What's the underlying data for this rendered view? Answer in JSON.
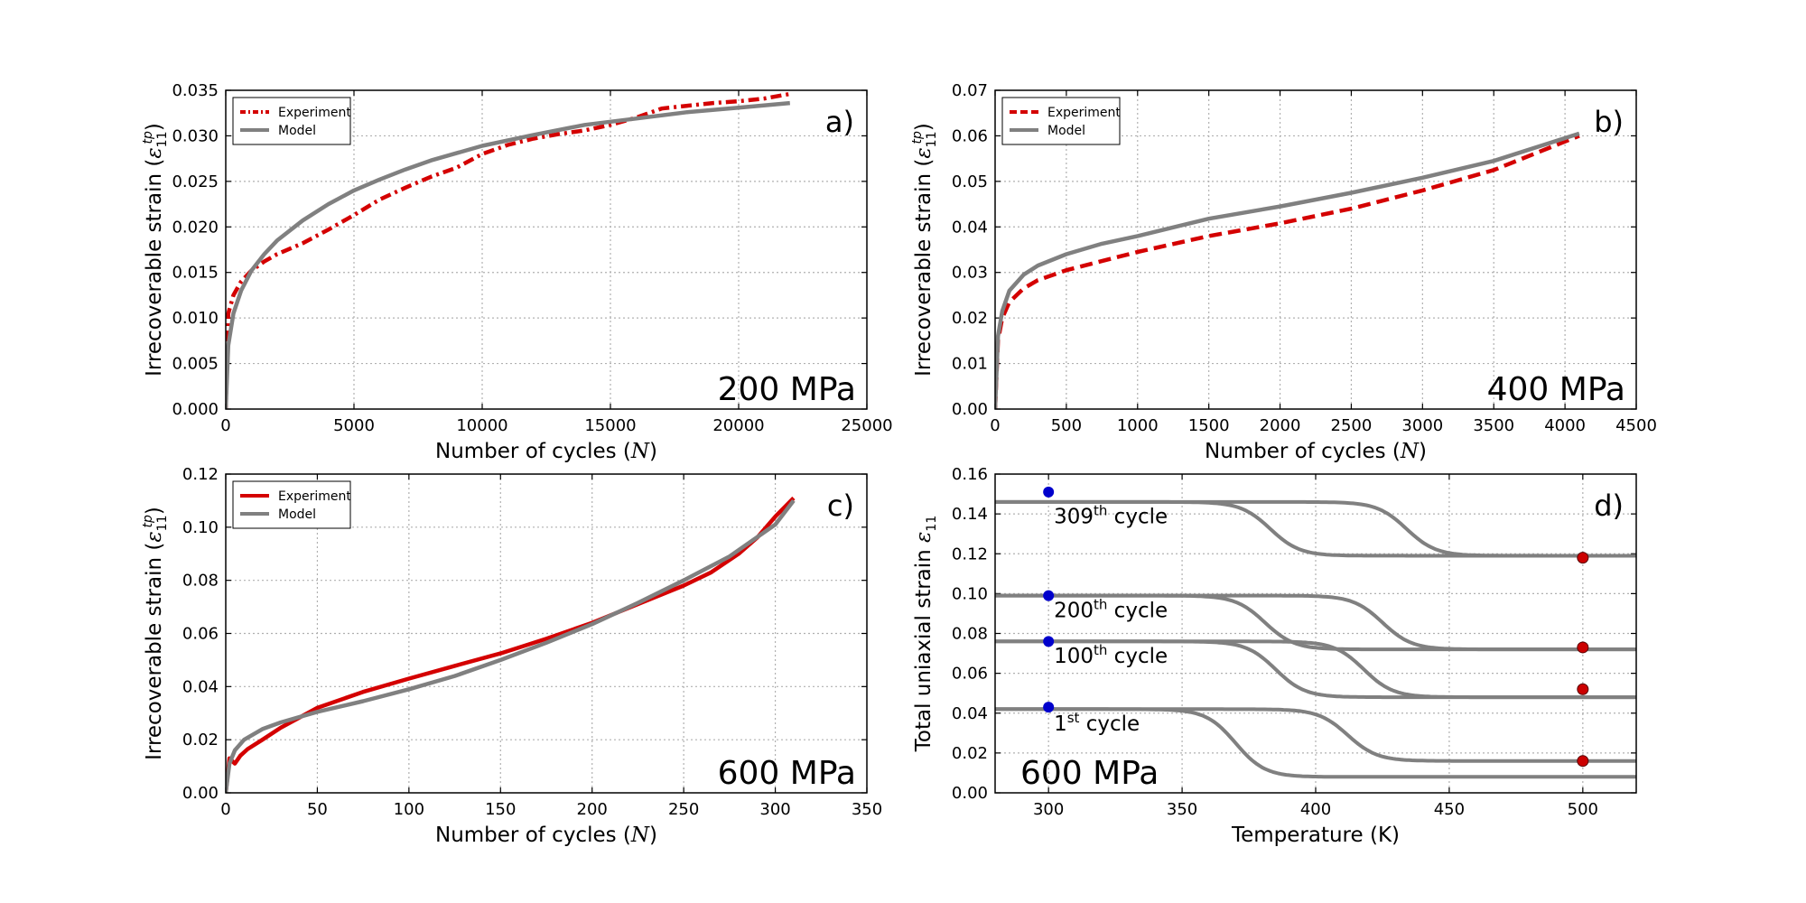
{
  "colors": {
    "experiment": "#d40000",
    "model": "#808080",
    "blue_marker": "#0000cc",
    "red_marker": "#cc0000",
    "grid": "#b0b0b0"
  },
  "chart_data": [
    {
      "id": "a",
      "type": "line",
      "panel_label": "a)",
      "annotation": "200 MPa",
      "xlabel": "Number of cycles (N)",
      "ylabel": "Irrecoverable strain (ε11tp)",
      "xlim": [
        0,
        25000
      ],
      "ylim": [
        0,
        0.035
      ],
      "xticks": [
        "0",
        "5000",
        "10000",
        "15000",
        "20000",
        "25000"
      ],
      "yticks": [
        "0.000",
        "0.005",
        "0.010",
        "0.015",
        "0.020",
        "0.025",
        "0.030",
        "0.035"
      ],
      "grid": true,
      "legend": "top-left",
      "series": [
        {
          "name": "Experiment",
          "style": "dashdot",
          "color": "#d40000",
          "x": [
            0,
            100,
            300,
            600,
            1000,
            1500,
            2000,
            3000,
            4000,
            5000,
            6000,
            7000,
            8000,
            9000,
            10000,
            11000,
            12000,
            13000,
            14000,
            15000,
            16000,
            17000,
            18000,
            19000,
            20000,
            21000,
            22000
          ],
          "y": [
            0.0,
            0.0105,
            0.0125,
            0.014,
            0.0152,
            0.0162,
            0.017,
            0.0182,
            0.0197,
            0.0213,
            0.023,
            0.0243,
            0.0255,
            0.0265,
            0.028,
            0.029,
            0.0297,
            0.0302,
            0.0306,
            0.0312,
            0.032,
            0.033,
            0.0333,
            0.0336,
            0.0338,
            0.0341,
            0.0346
          ]
        },
        {
          "name": "Model",
          "style": "solid",
          "color": "#808080",
          "x": [
            0,
            100,
            300,
            600,
            1000,
            1500,
            2000,
            3000,
            4000,
            5000,
            6000,
            7000,
            8000,
            9000,
            10000,
            12000,
            14000,
            16000,
            18000,
            20000,
            22000
          ],
          "y": [
            0.0,
            0.007,
            0.0105,
            0.013,
            0.0152,
            0.017,
            0.0185,
            0.0207,
            0.0225,
            0.024,
            0.0252,
            0.0263,
            0.0273,
            0.0281,
            0.0289,
            0.0301,
            0.0312,
            0.0319,
            0.0326,
            0.0331,
            0.0336
          ]
        }
      ]
    },
    {
      "id": "b",
      "type": "line",
      "panel_label": "b)",
      "annotation": "400 MPa",
      "xlabel": "Number of cycles (N)",
      "ylabel": "Irrecoverable strain (ε11tp)",
      "xlim": [
        0,
        4500
      ],
      "ylim": [
        0,
        0.07
      ],
      "xticks": [
        "0",
        "500",
        "1000",
        "1500",
        "2000",
        "2500",
        "3000",
        "3500",
        "4000",
        "4500"
      ],
      "yticks": [
        "0.00",
        "0.01",
        "0.02",
        "0.03",
        "0.04",
        "0.05",
        "0.06",
        "0.07"
      ],
      "grid": true,
      "legend": "top-left",
      "series": [
        {
          "name": "Experiment",
          "style": "dashed",
          "color": "#d40000",
          "x": [
            0,
            20,
            50,
            100,
            200,
            300,
            500,
            750,
            1000,
            1500,
            2000,
            2500,
            3000,
            3500,
            4100
          ],
          "y": [
            0.0,
            0.015,
            0.02,
            0.0235,
            0.0265,
            0.0283,
            0.0305,
            0.0325,
            0.0345,
            0.038,
            0.0408,
            0.044,
            0.048,
            0.0525,
            0.06
          ]
        },
        {
          "name": "Model",
          "style": "solid",
          "color": "#808080",
          "x": [
            0,
            20,
            50,
            100,
            200,
            300,
            500,
            750,
            1000,
            1500,
            2000,
            2500,
            3000,
            3500,
            4100
          ],
          "y": [
            0.0,
            0.016,
            0.0215,
            0.026,
            0.0295,
            0.0315,
            0.034,
            0.0363,
            0.038,
            0.0418,
            0.0445,
            0.0475,
            0.0508,
            0.0545,
            0.0605
          ]
        }
      ]
    },
    {
      "id": "c",
      "type": "line",
      "panel_label": "c)",
      "annotation": "600 MPa",
      "xlabel": "Number of cycles (N)",
      "ylabel": "Irrecoverable strain (ε11tp)",
      "xlim": [
        0,
        350
      ],
      "ylim": [
        0,
        0.12
      ],
      "xticks": [
        "0",
        "50",
        "100",
        "150",
        "200",
        "250",
        "300",
        "350"
      ],
      "yticks": [
        "0.00",
        "0.02",
        "0.04",
        "0.06",
        "0.08",
        "0.10",
        "0.12"
      ],
      "grid": true,
      "legend": "top-left",
      "series": [
        {
          "name": "Experiment",
          "style": "solid",
          "color": "#d40000",
          "x": [
            0,
            2,
            5,
            8,
            12,
            20,
            30,
            50,
            75,
            100,
            125,
            150,
            175,
            200,
            225,
            250,
            265,
            280,
            290,
            300,
            310
          ],
          "y": [
            0.0,
            0.013,
            0.011,
            0.014,
            0.0165,
            0.02,
            0.0245,
            0.032,
            0.038,
            0.043,
            0.0478,
            0.0525,
            0.058,
            0.064,
            0.071,
            0.078,
            0.083,
            0.09,
            0.096,
            0.104,
            0.111
          ]
        },
        {
          "name": "Model",
          "style": "solid",
          "color": "#808080",
          "x": [
            0,
            2,
            5,
            10,
            20,
            30,
            50,
            75,
            100,
            125,
            150,
            175,
            200,
            225,
            250,
            275,
            300,
            310
          ],
          "y": [
            0.0,
            0.011,
            0.016,
            0.02,
            0.024,
            0.0265,
            0.0305,
            0.0345,
            0.039,
            0.044,
            0.05,
            0.0565,
            0.0635,
            0.0715,
            0.08,
            0.089,
            0.101,
            0.11
          ]
        }
      ]
    },
    {
      "id": "d",
      "type": "line",
      "panel_label": "d)",
      "annotation": "600 MPa",
      "xlabel": "Temperature (K)",
      "ylabel": "Total uniaxial strain ε11",
      "xlim": [
        280,
        520
      ],
      "ylim": [
        0,
        0.16
      ],
      "xticks": [
        "300",
        "350",
        "400",
        "450",
        "500"
      ],
      "xtick_values": [
        300,
        350,
        400,
        450,
        500
      ],
      "yticks": [
        "0.00",
        "0.02",
        "0.04",
        "0.06",
        "0.08",
        "0.10",
        "0.12",
        "0.14",
        "0.16"
      ],
      "grid": true,
      "cycle_labels": [
        {
          "prefix": "309",
          "sup": "th",
          "suffix": " cycle",
          "y": 0.137
        },
        {
          "prefix": "200",
          "sup": "th",
          "suffix": " cycle",
          "y": 0.09
        },
        {
          "prefix": "100",
          "sup": "th",
          "suffix": " cycle",
          "y": 0.067
        },
        {
          "prefix": "1",
          "sup": "st",
          "suffix": " cycle",
          "y": 0.033
        }
      ],
      "transitions": [
        {
          "high": 0.146,
          "low": 0.119,
          "centers": [
            383,
            434
          ]
        },
        {
          "high": 0.099,
          "low": 0.072,
          "centers": [
            381,
            425
          ]
        },
        {
          "high": 0.076,
          "low": 0.048,
          "centers": [
            385,
            418
          ]
        },
        {
          "high": 0.042,
          "low": 0.008,
          "centers": [
            370
          ]
        },
        {
          "high": 0.042,
          "low": 0.016,
          "centers": [
            412
          ]
        }
      ],
      "markers_blue": [
        {
          "x": 300,
          "y": 0.151
        },
        {
          "x": 300,
          "y": 0.099
        },
        {
          "x": 300,
          "y": 0.076
        },
        {
          "x": 300,
          "y": 0.043
        }
      ],
      "markers_red": [
        {
          "x": 500,
          "y": 0.118
        },
        {
          "x": 500,
          "y": 0.073
        },
        {
          "x": 500,
          "y": 0.052
        },
        {
          "x": 500,
          "y": 0.016
        }
      ]
    }
  ]
}
